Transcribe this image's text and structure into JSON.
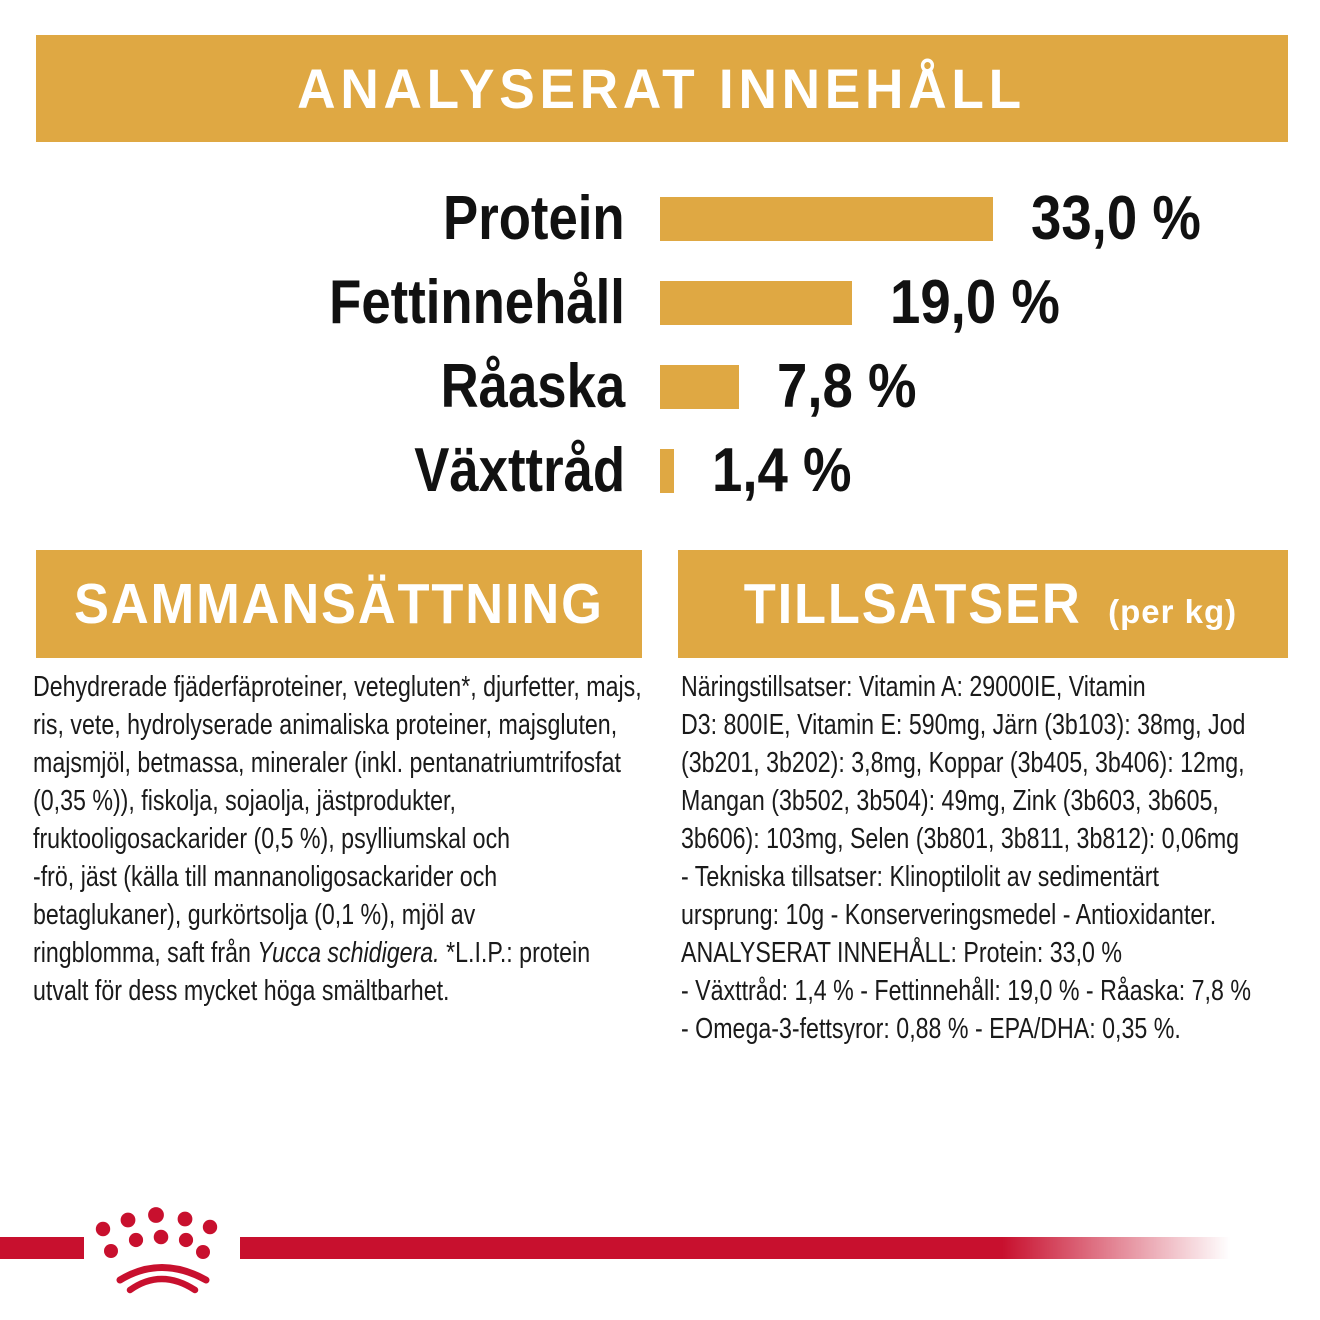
{
  "colors": {
    "gold": "#DFA843",
    "red": "#C8102E",
    "text": "#1A1A1A"
  },
  "header": {
    "title": "ANALYSERAT INNEHÅLL"
  },
  "chart_data": {
    "type": "bar",
    "orientation": "horizontal",
    "title": "ANALYSERAT INNEHÅLL",
    "categories": [
      "Protein",
      "Fettinnehåll",
      "Råaska",
      "Växttråd"
    ],
    "values": [
      33.0,
      19.0,
      7.8,
      1.4
    ],
    "value_labels": [
      "33,0 %",
      "19,0 %",
      "7,8 %",
      "1,4 %"
    ],
    "unit": "%",
    "xlim": [
      0,
      33
    ],
    "bar_color": "#DFA843",
    "legend": "none",
    "grid": false
  },
  "composition": {
    "heading": "SAMMANSÄTTNING",
    "text_before": "Dehydrerade fjäderfäproteiner, vetegluten*, djurfetter, majs,\nris, vete, hydrolyserade animaliska proteiner, majsgluten,\nmajsmjöl, betmassa, mineraler (inkl. pentanatriumtrifosfat\n(0,35 %)), fiskolja, sojaolja, jästprodukter,\nfruktooligosackarider (0,5 %), psylliumskal och\n-frö, jäst (källa till mannanoligosackarider och\nbetaglukaner), gurkörtsolja (0,1 %), mjöl av\nringblomma, saft från ",
    "species_italic": "Yucca schidigera.",
    "text_after": " *L.I.P.: protein\nutvalt för dess mycket höga smältbarhet."
  },
  "additives": {
    "heading": "TILLSATSER",
    "heading_suffix": "(per kg)",
    "text": "Näringstillsatser: Vitamin A: 29000IE, Vitamin\nD3: 800IE, Vitamin E: 590mg, Järn (3b103): 38mg, Jod\n(3b201, 3b202): 3,8mg, Koppar (3b405, 3b406): 12mg,\nMangan (3b502, 3b504): 49mg, Zink (3b603, 3b605,\n3b606): 103mg, Selen (3b801, 3b811, 3b812): 0,06mg\n- Tekniska tillsatser: Klinoptilolit av sedimentärt\nursprung: 10g - Konserveringsmedel - Antioxidanter.\nANALYSERAT INNEHÅLL: Protein: 33,0 %\n- Växttråd: 1,4 % - Fettinnehåll: 19,0 % - Råaska: 7,8 %\n- Omega-3-fettsyror: 0,88 % - EPA/DHA: 0,35 %."
  },
  "footer": {
    "logo": "royal-canin-crown"
  }
}
